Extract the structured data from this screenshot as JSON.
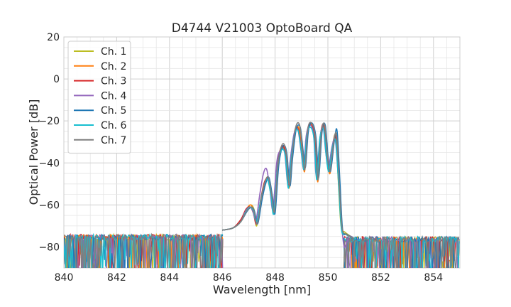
{
  "chart_data": {
    "type": "line",
    "title": "D4744 V21003 OptoBoard QA",
    "xlabel": "Wavelength [nm]",
    "ylabel": "Optical Power [dB]",
    "xlim": [
      840,
      855
    ],
    "ylim": [
      -90,
      20
    ],
    "xticks": [
      "840",
      "842",
      "844",
      "846",
      "848",
      "850",
      "852",
      "854"
    ],
    "yticks": [
      "20",
      "0",
      "−20",
      "−40",
      "−60",
      "−80"
    ],
    "grid": true,
    "legend_position": "upper-left",
    "series": [
      {
        "name": "Ch. 1",
        "color": "#bcbd22",
        "points": [
          [
            846.0,
            -72
          ],
          [
            846.4,
            -71
          ],
          [
            846.7,
            -68
          ],
          [
            846.9,
            -63
          ],
          [
            847.05,
            -60
          ],
          [
            847.2,
            -62
          ],
          [
            847.3,
            -70
          ],
          [
            847.45,
            -58
          ],
          [
            847.6,
            -50
          ],
          [
            847.72,
            -47
          ],
          [
            847.85,
            -55
          ],
          [
            847.95,
            -64
          ],
          [
            848.1,
            -40
          ],
          [
            848.25,
            -33
          ],
          [
            848.4,
            -36
          ],
          [
            848.5,
            -50
          ],
          [
            848.6,
            -38
          ],
          [
            848.75,
            -25
          ],
          [
            848.9,
            -24
          ],
          [
            849.0,
            -34
          ],
          [
            849.1,
            -42
          ],
          [
            849.2,
            -26
          ],
          [
            849.35,
            -22
          ],
          [
            849.5,
            -28
          ],
          [
            849.6,
            -47
          ],
          [
            849.72,
            -27
          ],
          [
            849.85,
            -23
          ],
          [
            849.95,
            -36
          ],
          [
            850.05,
            -43
          ],
          [
            850.2,
            -30
          ],
          [
            850.3,
            -28
          ],
          [
            850.4,
            -50
          ],
          [
            850.5,
            -70
          ],
          [
            850.65,
            -73
          ],
          [
            851.0,
            -76
          ]
        ]
      },
      {
        "name": "Ch. 2",
        "color": "#ff7f0e",
        "points": [
          [
            846.0,
            -72
          ],
          [
            846.4,
            -71
          ],
          [
            846.7,
            -68
          ],
          [
            846.92,
            -62
          ],
          [
            847.08,
            -60
          ],
          [
            847.2,
            -63
          ],
          [
            847.32,
            -69
          ],
          [
            847.48,
            -57
          ],
          [
            847.62,
            -49
          ],
          [
            847.75,
            -48
          ],
          [
            847.88,
            -57
          ],
          [
            847.98,
            -63
          ],
          [
            848.12,
            -39
          ],
          [
            848.27,
            -32
          ],
          [
            848.42,
            -35
          ],
          [
            848.53,
            -52
          ],
          [
            848.63,
            -37
          ],
          [
            848.78,
            -24
          ],
          [
            848.92,
            -24
          ],
          [
            849.03,
            -35
          ],
          [
            849.12,
            -44
          ],
          [
            849.23,
            -25
          ],
          [
            849.38,
            -22
          ],
          [
            849.52,
            -29
          ],
          [
            849.62,
            -49
          ],
          [
            849.75,
            -26
          ],
          [
            849.88,
            -23
          ],
          [
            849.98,
            -37
          ],
          [
            850.08,
            -45
          ],
          [
            850.22,
            -30
          ],
          [
            850.32,
            -28
          ],
          [
            850.43,
            -55
          ],
          [
            850.55,
            -72
          ],
          [
            850.7,
            -74
          ],
          [
            851.0,
            -76
          ]
        ]
      },
      {
        "name": "Ch. 3",
        "color": "#d62728",
        "points": [
          [
            846.0,
            -72
          ],
          [
            846.4,
            -71
          ],
          [
            846.7,
            -67
          ],
          [
            846.9,
            -62
          ],
          [
            847.06,
            -61
          ],
          [
            847.18,
            -64
          ],
          [
            847.3,
            -69
          ],
          [
            847.46,
            -57
          ],
          [
            847.6,
            -49
          ],
          [
            847.73,
            -48
          ],
          [
            847.86,
            -56
          ],
          [
            847.96,
            -63
          ],
          [
            848.1,
            -40
          ],
          [
            848.26,
            -32
          ],
          [
            848.4,
            -36
          ],
          [
            848.52,
            -51
          ],
          [
            848.62,
            -37
          ],
          [
            848.76,
            -24
          ],
          [
            848.9,
            -25
          ],
          [
            849.0,
            -35
          ],
          [
            849.1,
            -43
          ],
          [
            849.22,
            -25
          ],
          [
            849.36,
            -21
          ],
          [
            849.5,
            -28
          ],
          [
            849.6,
            -48
          ],
          [
            849.73,
            -26
          ],
          [
            849.86,
            -22
          ],
          [
            849.96,
            -36
          ],
          [
            850.06,
            -44
          ],
          [
            850.2,
            -31
          ],
          [
            850.3,
            -28
          ],
          [
            850.42,
            -52
          ],
          [
            850.52,
            -71
          ],
          [
            850.68,
            -74
          ],
          [
            851.0,
            -76
          ]
        ]
      },
      {
        "name": "Ch. 4",
        "color": "#9467bd",
        "points": [
          [
            846.0,
            -72
          ],
          [
            846.4,
            -71
          ],
          [
            846.7,
            -68
          ],
          [
            846.88,
            -63
          ],
          [
            847.04,
            -61
          ],
          [
            847.16,
            -63
          ],
          [
            847.28,
            -67
          ],
          [
            847.42,
            -55
          ],
          [
            847.56,
            -45
          ],
          [
            847.68,
            -43
          ],
          [
            847.8,
            -52
          ],
          [
            847.92,
            -62
          ],
          [
            848.06,
            -40
          ],
          [
            848.2,
            -34
          ],
          [
            848.36,
            -35
          ],
          [
            848.48,
            -50
          ],
          [
            848.58,
            -38
          ],
          [
            848.72,
            -26
          ],
          [
            848.86,
            -24
          ],
          [
            848.98,
            -34
          ],
          [
            849.08,
            -42
          ],
          [
            849.18,
            -27
          ],
          [
            849.32,
            -22
          ],
          [
            849.46,
            -27
          ],
          [
            849.56,
            -46
          ],
          [
            849.7,
            -28
          ],
          [
            849.82,
            -23
          ],
          [
            849.92,
            -35
          ],
          [
            850.02,
            -42
          ],
          [
            850.16,
            -32
          ],
          [
            850.28,
            -29
          ],
          [
            850.4,
            -48
          ],
          [
            850.5,
            -66
          ],
          [
            850.62,
            -80
          ],
          [
            850.8,
            -75
          ],
          [
            851.0,
            -76
          ]
        ]
      },
      {
        "name": "Ch. 5",
        "color": "#1f77b4",
        "points": [
          [
            846.0,
            -72
          ],
          [
            846.4,
            -71
          ],
          [
            846.7,
            -68
          ],
          [
            846.94,
            -63
          ],
          [
            847.1,
            -61
          ],
          [
            847.22,
            -63
          ],
          [
            847.34,
            -69
          ],
          [
            847.5,
            -58
          ],
          [
            847.64,
            -50
          ],
          [
            847.77,
            -47
          ],
          [
            847.9,
            -56
          ],
          [
            848.0,
            -64
          ],
          [
            848.14,
            -41
          ],
          [
            848.3,
            -32
          ],
          [
            848.44,
            -35
          ],
          [
            848.56,
            -51
          ],
          [
            848.66,
            -38
          ],
          [
            848.8,
            -24
          ],
          [
            848.95,
            -23
          ],
          [
            849.06,
            -34
          ],
          [
            849.15,
            -42
          ],
          [
            849.26,
            -25
          ],
          [
            849.4,
            -21
          ],
          [
            849.55,
            -28
          ],
          [
            849.65,
            -47
          ],
          [
            849.78,
            -25
          ],
          [
            849.9,
            -22
          ],
          [
            850.0,
            -36
          ],
          [
            850.1,
            -44
          ],
          [
            850.25,
            -29
          ],
          [
            850.35,
            -25
          ],
          [
            850.46,
            -50
          ],
          [
            850.56,
            -72
          ],
          [
            850.72,
            -74
          ],
          [
            851.0,
            -76
          ]
        ]
      },
      {
        "name": "Ch. 6",
        "color": "#17becf",
        "points": [
          [
            846.0,
            -72
          ],
          [
            846.4,
            -71
          ],
          [
            846.7,
            -68
          ],
          [
            846.9,
            -63
          ],
          [
            847.05,
            -61
          ],
          [
            847.18,
            -63
          ],
          [
            847.3,
            -68
          ],
          [
            847.45,
            -58
          ],
          [
            847.6,
            -50
          ],
          [
            847.72,
            -48
          ],
          [
            847.85,
            -56
          ],
          [
            847.95,
            -64
          ],
          [
            848.1,
            -41
          ],
          [
            848.24,
            -34
          ],
          [
            848.38,
            -36
          ],
          [
            848.5,
            -52
          ],
          [
            848.6,
            -39
          ],
          [
            848.74,
            -26
          ],
          [
            848.88,
            -25
          ],
          [
            849.0,
            -35
          ],
          [
            849.1,
            -43
          ],
          [
            849.2,
            -27
          ],
          [
            849.34,
            -23
          ],
          [
            849.48,
            -29
          ],
          [
            849.58,
            -48
          ],
          [
            849.7,
            -28
          ],
          [
            849.84,
            -24
          ],
          [
            849.94,
            -37
          ],
          [
            850.04,
            -44
          ],
          [
            850.18,
            -32
          ],
          [
            850.3,
            -30
          ],
          [
            850.42,
            -53
          ],
          [
            850.52,
            -72
          ],
          [
            850.68,
            -74
          ],
          [
            851.0,
            -76
          ]
        ]
      },
      {
        "name": "Ch. 7",
        "color": "#7f7f7f",
        "points": [
          [
            846.0,
            -72
          ],
          [
            846.4,
            -71
          ],
          [
            846.7,
            -68
          ],
          [
            846.92,
            -63
          ],
          [
            847.08,
            -61
          ],
          [
            847.2,
            -63
          ],
          [
            847.32,
            -69
          ],
          [
            847.48,
            -57
          ],
          [
            847.62,
            -49
          ],
          [
            847.75,
            -47
          ],
          [
            847.88,
            -56
          ],
          [
            847.98,
            -63
          ],
          [
            848.12,
            -40
          ],
          [
            848.28,
            -31
          ],
          [
            848.42,
            -35
          ],
          [
            848.54,
            -51
          ],
          [
            848.64,
            -37
          ],
          [
            848.78,
            -23
          ],
          [
            848.93,
            -22
          ],
          [
            849.04,
            -34
          ],
          [
            849.13,
            -43
          ],
          [
            849.24,
            -24
          ],
          [
            849.38,
            -21
          ],
          [
            849.53,
            -28
          ],
          [
            849.63,
            -48
          ],
          [
            849.76,
            -25
          ],
          [
            849.88,
            -22
          ],
          [
            849.98,
            -36
          ],
          [
            850.08,
            -44
          ],
          [
            850.22,
            -30
          ],
          [
            850.33,
            -27
          ],
          [
            850.44,
            -52
          ],
          [
            850.54,
            -71
          ],
          [
            850.7,
            -74
          ],
          [
            851.0,
            -76
          ]
        ]
      }
    ]
  }
}
